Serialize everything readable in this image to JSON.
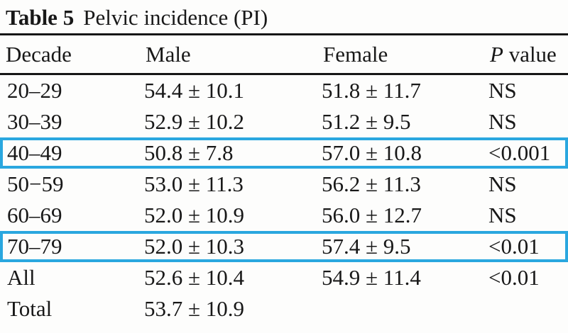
{
  "title": {
    "label": "Table 5",
    "caption": "Pelvic incidence (PI)"
  },
  "highlight_color": "#2aa7df",
  "table": {
    "columns": [
      "Decade",
      "Male",
      "Female",
      "P value"
    ],
    "rows": [
      {
        "decade": "20–29",
        "male": "54.4 ± 10.1",
        "female": "51.8 ± 11.7",
        "p": "NS",
        "highlight": false
      },
      {
        "decade": "30–39",
        "male": "52.9 ± 10.2",
        "female": "51.2 ± 9.5",
        "p": "NS",
        "highlight": false
      },
      {
        "decade": "40–49",
        "male": "50.8 ± 7.8",
        "female": "57.0 ± 10.8",
        "p": "<0.001",
        "highlight": true
      },
      {
        "decade": "50−59",
        "male": "53.0 ± 11.3",
        "female": "56.2 ± 11.3",
        "p": "NS",
        "highlight": false
      },
      {
        "decade": "60–69",
        "male": "52.0 ± 10.9",
        "female": "56.0 ± 12.7",
        "p": "NS",
        "highlight": false
      },
      {
        "decade": "70–79",
        "male": "52.0 ± 10.3",
        "female": "57.4 ± 9.5",
        "p": "<0.01",
        "highlight": true
      },
      {
        "decade": "All",
        "male": "52.6 ± 10.4",
        "female": "54.9 ± 11.4",
        "p": "<0.01",
        "highlight": false
      },
      {
        "decade": "Total",
        "male": "53.7 ± 10.9",
        "female": "",
        "p": "",
        "highlight": false
      }
    ]
  },
  "chart_data": {
    "type": "table",
    "title": "Table 5 Pelvic incidence (PI)",
    "columns": [
      "Decade",
      "Male",
      "Female",
      "P value"
    ],
    "rows": [
      [
        "20–29",
        "54.4 ± 10.1",
        "51.8 ± 11.7",
        "NS"
      ],
      [
        "30–39",
        "52.9 ± 10.2",
        "51.2 ± 9.5",
        "NS"
      ],
      [
        "40–49",
        "50.8 ± 7.8",
        "57.0 ± 10.8",
        "<0.001"
      ],
      [
        "50−59",
        "53.0 ± 11.3",
        "56.2 ± 11.3",
        "NS"
      ],
      [
        "60–69",
        "52.0 ± 10.9",
        "56.0 ± 12.7",
        "NS"
      ],
      [
        "70–79",
        "52.0 ± 10.3",
        "57.4 ± 9.5",
        "<0.01"
      ],
      [
        "All",
        "52.6 ± 10.4",
        "54.9 ± 11.4",
        "<0.01"
      ],
      [
        "Total",
        "53.7 ± 10.9",
        "",
        ""
      ]
    ],
    "annotations": [
      "cyan box around row 40–49",
      "cyan box around row 70–79"
    ]
  }
}
